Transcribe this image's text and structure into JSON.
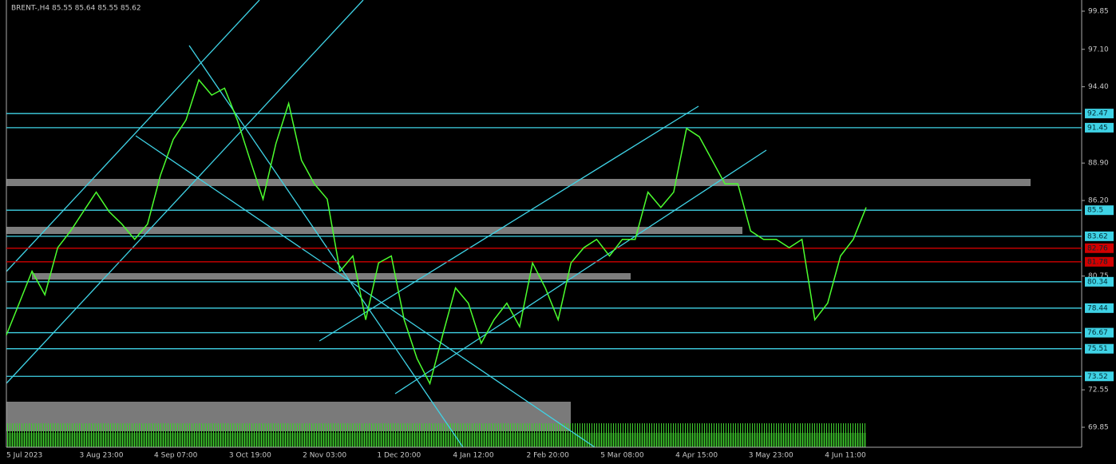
{
  "chart_data": {
    "type": "line",
    "title": "BRENT-,H4 85.55 85.64 85.55 85.62",
    "x_labels": [
      "5 Jul 2023",
      "3 Aug 23:00",
      "4 Sep 07:00",
      "3 Oct 19:00",
      "2 Nov 03:00",
      "1 Dec 20:00",
      "4 Jan 12:00",
      "2 Feb 20:00",
      "5 Mar 08:00",
      "4 Apr 15:00",
      "3 May 23:00",
      "4 Jun 11:00"
    ],
    "series": [
      {
        "name": "BRENT-",
        "color": "#4cff2e",
        "values": [
          76.5,
          78.8,
          81.1,
          79.4,
          82.8,
          84.0,
          85.4,
          86.8,
          85.4,
          84.5,
          83.4,
          84.5,
          88.0,
          90.6,
          92.0,
          94.9,
          93.8,
          94.3,
          92.0,
          89.1,
          86.3,
          90.3,
          93.2,
          89.1,
          87.4,
          86.3,
          81.1,
          82.2,
          77.6,
          81.7,
          82.2,
          77.6,
          74.8,
          73.0,
          76.5,
          79.9,
          78.8,
          75.9,
          77.6,
          78.8,
          77.1,
          81.7,
          79.9,
          77.6,
          81.7,
          82.8,
          83.4,
          82.2,
          83.4,
          83.4,
          86.8,
          85.7,
          86.8,
          91.4,
          90.8,
          89.1,
          87.4,
          87.4,
          84.0,
          83.4,
          83.4,
          82.8,
          83.4,
          77.6,
          78.8,
          82.2,
          83.4,
          85.7
        ]
      }
    ],
    "ylim": [
      69.85,
      99.85
    ],
    "yticks": [
      {
        "value": 99.85,
        "label": "99.85"
      },
      {
        "value": 97.1,
        "label": "97.10"
      },
      {
        "value": 94.4,
        "label": "94.40"
      },
      {
        "value": 88.9,
        "label": "88.90"
      },
      {
        "value": 86.2,
        "label": "86.20"
      },
      {
        "value": 80.75,
        "label": "80.75"
      },
      {
        "value": 72.55,
        "label": "72.55"
      },
      {
        "value": 69.85,
        "label": "69.85"
      }
    ],
    "levels": [
      92.47,
      91.45,
      85.5,
      83.62,
      80.34,
      78.44,
      76.67,
      75.51,
      73.52
    ],
    "level_color": "#3fd3e6",
    "red_levels": [
      82.76,
      81.78
    ],
    "red_level_color": "#d10000"
  }
}
